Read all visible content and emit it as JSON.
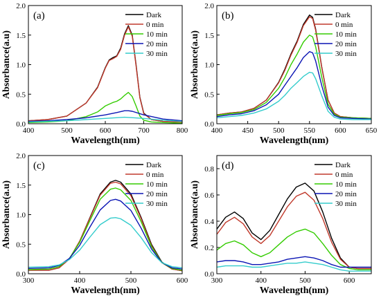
{
  "chart_data": [
    {
      "type": "line",
      "panel_label": "(a)",
      "xlabel": "Wavelength(nm)",
      "ylabel": "Absorbance(a.u)",
      "xlim": [
        400,
        800
      ],
      "ylim": [
        0,
        2.0
      ],
      "xticks": [
        400,
        500,
        600,
        700,
        800
      ],
      "yticks": [
        0.0,
        0.5,
        1.0,
        1.5,
        2.0
      ],
      "ytick_labels": [
        "0.0",
        "0.5",
        "1.0",
        "1.5",
        "2.0"
      ],
      "legend_position": "top-right",
      "series": [
        {
          "name": "Dark",
          "color": "#000000",
          "x": [
            400,
            450,
            500,
            550,
            580,
            600,
            610,
            620,
            630,
            640,
            650,
            660,
            670,
            680,
            690,
            700,
            720,
            750,
            800
          ],
          "y": [
            0.05,
            0.07,
            0.13,
            0.35,
            0.62,
            0.95,
            1.08,
            1.12,
            1.15,
            1.28,
            1.52,
            1.66,
            1.5,
            1.0,
            0.45,
            0.18,
            0.07,
            0.04,
            0.03
          ]
        },
        {
          "name": "0 min",
          "color": "#c0392b",
          "x": [
            400,
            450,
            500,
            550,
            580,
            600,
            610,
            620,
            630,
            640,
            650,
            660,
            670,
            680,
            690,
            700,
            720,
            750,
            800
          ],
          "y": [
            0.05,
            0.07,
            0.13,
            0.35,
            0.61,
            0.94,
            1.07,
            1.1,
            1.14,
            1.26,
            1.5,
            1.64,
            1.48,
            0.98,
            0.44,
            0.17,
            0.07,
            0.04,
            0.03
          ]
        },
        {
          "name": "10 min",
          "color": "#33cc00",
          "x": [
            400,
            450,
            500,
            550,
            580,
            600,
            620,
            630,
            640,
            650,
            660,
            670,
            680,
            690,
            700,
            720,
            750,
            800
          ],
          "y": [
            0.02,
            0.03,
            0.05,
            0.12,
            0.2,
            0.3,
            0.36,
            0.38,
            0.42,
            0.48,
            0.53,
            0.46,
            0.3,
            0.13,
            0.06,
            0.03,
            0.02,
            0.01
          ]
        },
        {
          "name": "20 min",
          "color": "#0a14b4",
          "x": [
            400,
            450,
            500,
            550,
            600,
            630,
            650,
            660,
            670,
            700,
            750,
            800
          ],
          "y": [
            0.04,
            0.05,
            0.07,
            0.1,
            0.15,
            0.19,
            0.22,
            0.22,
            0.21,
            0.15,
            0.08,
            0.05
          ]
        },
        {
          "name": "30 min",
          "color": "#33cccc",
          "x": [
            400,
            450,
            500,
            550,
            600,
            650,
            700,
            750,
            800
          ],
          "y": [
            0.03,
            0.04,
            0.05,
            0.07,
            0.09,
            0.11,
            0.09,
            0.06,
            0.04
          ]
        }
      ]
    },
    {
      "type": "line",
      "panel_label": "(b)",
      "xlabel": "Wavelength(nm)",
      "ylabel": "Absorbance(a.u)",
      "xlim": [
        400,
        650
      ],
      "ylim": [
        0,
        2.0
      ],
      "xticks": [
        400,
        450,
        500,
        550,
        600,
        650
      ],
      "yticks": [
        0.0,
        0.5,
        1.0,
        1.5,
        2.0
      ],
      "ytick_labels": [
        "0.0",
        "0.5",
        "1.0",
        "1.5",
        "2.0"
      ],
      "legend_position": "top-right",
      "series": [
        {
          "name": "Dark",
          "color": "#000000",
          "x": [
            400,
            420,
            440,
            460,
            480,
            500,
            510,
            520,
            530,
            540,
            550,
            555,
            560,
            570,
            580,
            590,
            600,
            620,
            650
          ],
          "y": [
            0.15,
            0.18,
            0.2,
            0.26,
            0.4,
            0.7,
            0.92,
            1.18,
            1.4,
            1.68,
            1.84,
            1.8,
            1.6,
            0.95,
            0.4,
            0.18,
            0.12,
            0.1,
            0.09
          ]
        },
        {
          "name": "0 min",
          "color": "#c0392b",
          "x": [
            400,
            420,
            440,
            460,
            480,
            500,
            510,
            520,
            530,
            540,
            550,
            555,
            560,
            570,
            580,
            590,
            600,
            620,
            650
          ],
          "y": [
            0.15,
            0.18,
            0.2,
            0.26,
            0.4,
            0.69,
            0.9,
            1.16,
            1.38,
            1.66,
            1.81,
            1.78,
            1.58,
            0.94,
            0.4,
            0.18,
            0.12,
            0.1,
            0.09
          ]
        },
        {
          "name": "10 min",
          "color": "#33cc00",
          "x": [
            400,
            420,
            440,
            460,
            480,
            500,
            510,
            520,
            530,
            540,
            550,
            555,
            560,
            570,
            580,
            590,
            600,
            620,
            650
          ],
          "y": [
            0.14,
            0.17,
            0.19,
            0.24,
            0.36,
            0.6,
            0.78,
            1.0,
            1.18,
            1.38,
            1.5,
            1.47,
            1.3,
            0.78,
            0.33,
            0.16,
            0.11,
            0.1,
            0.09
          ]
        },
        {
          "name": "20 min",
          "color": "#0a14b4",
          "x": [
            400,
            420,
            440,
            460,
            480,
            500,
            510,
            520,
            530,
            540,
            550,
            555,
            560,
            570,
            580,
            590,
            600,
            620,
            650
          ],
          "y": [
            0.12,
            0.15,
            0.17,
            0.22,
            0.32,
            0.5,
            0.65,
            0.8,
            0.95,
            1.12,
            1.22,
            1.2,
            1.06,
            0.64,
            0.28,
            0.14,
            0.1,
            0.09,
            0.08
          ]
        },
        {
          "name": "30 min",
          "color": "#33cccc",
          "x": [
            400,
            420,
            440,
            460,
            480,
            500,
            510,
            520,
            530,
            540,
            550,
            555,
            560,
            570,
            580,
            590,
            600,
            620,
            650
          ],
          "y": [
            0.1,
            0.12,
            0.14,
            0.18,
            0.25,
            0.38,
            0.48,
            0.6,
            0.7,
            0.8,
            0.87,
            0.86,
            0.76,
            0.47,
            0.21,
            0.11,
            0.08,
            0.07,
            0.07
          ]
        }
      ]
    },
    {
      "type": "line",
      "panel_label": "(c)",
      "xlabel": "Wavelength(nm)",
      "ylabel": "Absorbance(a.u)",
      "xlim": [
        300,
        600
      ],
      "ylim": [
        0,
        2.0
      ],
      "xticks": [
        300,
        400,
        500,
        600
      ],
      "yticks": [
        0.0,
        0.5,
        1.0,
        1.5,
        2.0
      ],
      "ytick_labels": [
        "0.0",
        "0.5",
        "1.0",
        "1.5",
        "2.0"
      ],
      "legend_position": "top-right",
      "series": [
        {
          "name": "Dark",
          "color": "#000000",
          "x": [
            300,
            340,
            360,
            380,
            400,
            420,
            440,
            460,
            470,
            480,
            500,
            520,
            540,
            560,
            580,
            600
          ],
          "y": [
            0.06,
            0.06,
            0.1,
            0.25,
            0.55,
            0.95,
            1.35,
            1.55,
            1.58,
            1.55,
            1.35,
            0.95,
            0.5,
            0.2,
            0.08,
            0.05
          ]
        },
        {
          "name": "0 min",
          "color": "#c0392b",
          "x": [
            300,
            340,
            360,
            380,
            400,
            420,
            440,
            460,
            470,
            480,
            500,
            520,
            540,
            560,
            580,
            600
          ],
          "y": [
            0.06,
            0.06,
            0.1,
            0.25,
            0.55,
            0.94,
            1.33,
            1.53,
            1.55,
            1.52,
            1.32,
            0.93,
            0.48,
            0.19,
            0.08,
            0.05
          ]
        },
        {
          "name": "10 min",
          "color": "#33cc00",
          "x": [
            300,
            340,
            360,
            380,
            400,
            420,
            440,
            460,
            470,
            480,
            500,
            520,
            540,
            560,
            580,
            600
          ],
          "y": [
            0.07,
            0.08,
            0.12,
            0.26,
            0.53,
            0.9,
            1.26,
            1.43,
            1.45,
            1.42,
            1.24,
            0.88,
            0.46,
            0.19,
            0.09,
            0.06
          ]
        },
        {
          "name": "20 min",
          "color": "#0a14b4",
          "x": [
            300,
            340,
            360,
            380,
            400,
            420,
            440,
            460,
            470,
            480,
            500,
            520,
            540,
            560,
            580,
            600
          ],
          "y": [
            0.09,
            0.1,
            0.14,
            0.26,
            0.48,
            0.79,
            1.08,
            1.24,
            1.26,
            1.23,
            1.07,
            0.77,
            0.42,
            0.19,
            0.1,
            0.08
          ]
        },
        {
          "name": "30 min",
          "color": "#33cccc",
          "x": [
            300,
            340,
            360,
            380,
            400,
            420,
            440,
            460,
            470,
            480,
            500,
            520,
            540,
            560,
            580,
            600
          ],
          "y": [
            0.11,
            0.12,
            0.15,
            0.24,
            0.4,
            0.62,
            0.83,
            0.94,
            0.95,
            0.93,
            0.82,
            0.61,
            0.36,
            0.19,
            0.12,
            0.1
          ]
        }
      ]
    },
    {
      "type": "line",
      "panel_label": "(d)",
      "xlabel": "Wavelength(nm)",
      "ylabel": "Absorbance(a.u)",
      "xlim": [
        300,
        650
      ],
      "ylim": [
        0,
        0.9
      ],
      "xticks": [
        300,
        400,
        500,
        600
      ],
      "yticks": [
        0.0,
        0.2,
        0.4,
        0.6,
        0.8
      ],
      "ytick_labels": [
        "0.0",
        "0.2",
        "0.4",
        "0.6",
        "0.8"
      ],
      "legend_position": "top-right",
      "series": [
        {
          "name": "Dark",
          "color": "#000000",
          "x": [
            300,
            320,
            340,
            360,
            380,
            400,
            420,
            440,
            460,
            480,
            500,
            520,
            540,
            560,
            580,
            600,
            620,
            650
          ],
          "y": [
            0.34,
            0.43,
            0.47,
            0.42,
            0.31,
            0.26,
            0.33,
            0.45,
            0.57,
            0.66,
            0.69,
            0.63,
            0.47,
            0.27,
            0.12,
            0.05,
            0.04,
            0.04
          ]
        },
        {
          "name": "0 min",
          "color": "#c0392b",
          "x": [
            300,
            320,
            340,
            360,
            380,
            400,
            420,
            440,
            460,
            480,
            500,
            520,
            540,
            560,
            580,
            600,
            620,
            650
          ],
          "y": [
            0.3,
            0.39,
            0.43,
            0.38,
            0.28,
            0.23,
            0.29,
            0.4,
            0.51,
            0.59,
            0.62,
            0.56,
            0.42,
            0.24,
            0.11,
            0.05,
            0.04,
            0.04
          ]
        },
        {
          "name": "10 min",
          "color": "#33cc00",
          "x": [
            300,
            320,
            340,
            360,
            380,
            400,
            420,
            440,
            460,
            480,
            500,
            520,
            540,
            560,
            580,
            600,
            620,
            650
          ],
          "y": [
            0.18,
            0.23,
            0.25,
            0.22,
            0.16,
            0.13,
            0.16,
            0.22,
            0.28,
            0.32,
            0.34,
            0.31,
            0.23,
            0.14,
            0.07,
            0.04,
            0.03,
            0.03
          ]
        },
        {
          "name": "20 min",
          "color": "#0a14b4",
          "x": [
            300,
            320,
            340,
            360,
            380,
            400,
            420,
            440,
            460,
            480,
            500,
            520,
            540,
            560,
            580,
            600,
            620,
            650
          ],
          "y": [
            0.09,
            0.1,
            0.1,
            0.09,
            0.07,
            0.07,
            0.08,
            0.09,
            0.11,
            0.12,
            0.13,
            0.12,
            0.1,
            0.07,
            0.05,
            0.05,
            0.05,
            0.05
          ]
        },
        {
          "name": "30 min",
          "color": "#33cccc",
          "x": [
            300,
            320,
            340,
            360,
            380,
            400,
            420,
            440,
            460,
            480,
            500,
            520,
            540,
            560,
            580,
            600,
            620,
            650
          ],
          "y": [
            0.05,
            0.06,
            0.06,
            0.06,
            0.05,
            0.05,
            0.06,
            0.07,
            0.08,
            0.08,
            0.09,
            0.08,
            0.07,
            0.05,
            0.03,
            0.02,
            0.02,
            0.02
          ]
        }
      ]
    }
  ]
}
